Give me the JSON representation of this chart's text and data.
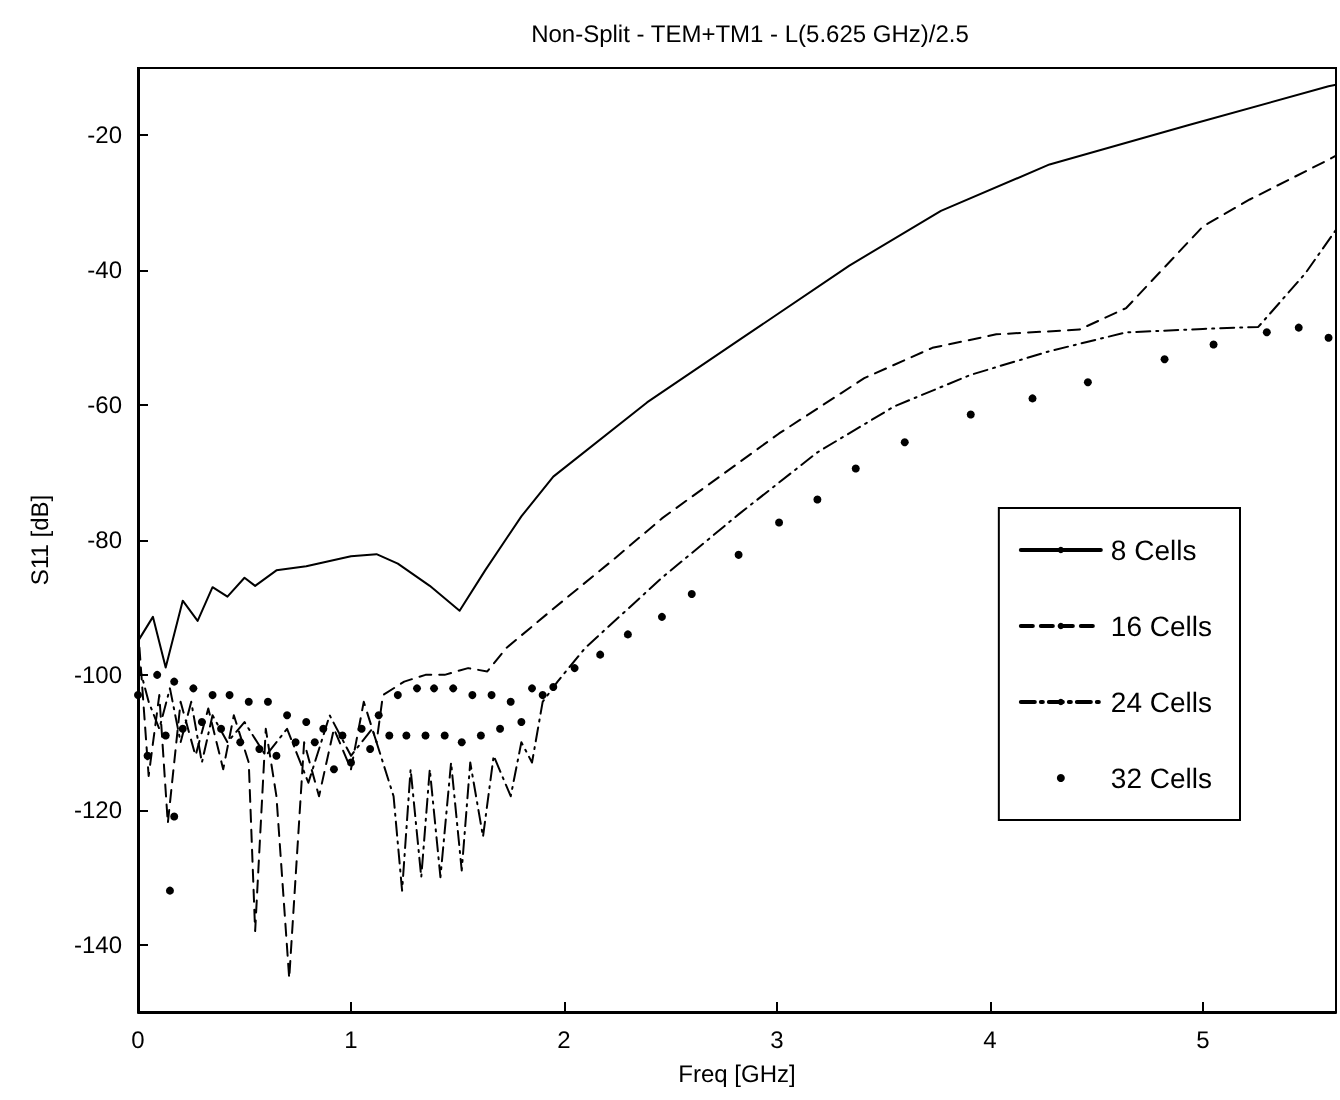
{
  "chart_data": {
    "type": "line",
    "title": "Non-Split - TEM+TM1 - L(5.625 GHz)/2.5",
    "xlabel": "Freq [GHz]",
    "ylabel": "S11 [dB]",
    "xlim": [
      0,
      5.625
    ],
    "xticks": [
      0,
      1,
      2,
      3,
      4,
      5
    ],
    "ylim": [
      -150,
      -10
    ],
    "yticks": [
      -140,
      -120,
      -100,
      -80,
      -60,
      -40,
      -20
    ],
    "grid": false,
    "legend": "bottom right",
    "series": [
      {
        "name": "8 Cells",
        "color": "#000000",
        "line_style": "solid",
        "x": [
          0,
          0.07,
          0.13,
          0.21,
          0.28,
          0.35,
          0.42,
          0.5,
          0.55,
          0.65,
          0.79,
          1.0,
          1.12,
          1.22,
          1.37,
          1.51,
          1.63,
          1.8,
          1.95,
          2.39,
          2.82,
          3.34,
          3.77,
          4.28,
          4.93,
          5.59,
          5.625
        ],
        "values": [
          -95,
          -91.4,
          -98.9,
          -89,
          -92,
          -87,
          -88.4,
          -85.6,
          -86.8,
          -84.5,
          -83.9,
          -82.4,
          -82.1,
          -83.5,
          -86.8,
          -90.5,
          -84.5,
          -76.5,
          -70.6,
          -59.6,
          -50.4,
          -39.3,
          -31.2,
          -24.3,
          -18.5,
          -12.7,
          -12.5
        ]
      },
      {
        "name": "16 Cells",
        "color": "#000000",
        "line_style": "dashed",
        "x": [
          0,
          0.05,
          0.1,
          0.14,
          0.2,
          0.27,
          0.33,
          0.4,
          0.45,
          0.52,
          0.55,
          0.6,
          0.65,
          0.71,
          0.78,
          0.85,
          0.92,
          1.0,
          1.06,
          1.12,
          1.15,
          1.25,
          1.35,
          1.44,
          1.55,
          1.64,
          1.73,
          1.95,
          2.24,
          2.46,
          3.01,
          3.41,
          3.73,
          4.03,
          4.42,
          4.64,
          5.0,
          5.22,
          5.59,
          5.625
        ],
        "values": [
          -93,
          -115,
          -103,
          -122,
          -104,
          -112,
          -105,
          -114,
          -106,
          -113,
          -138,
          -108,
          -118,
          -145,
          -110,
          -118,
          -108,
          -114,
          -104,
          -110,
          -103,
          -101,
          -100,
          -100,
          -99,
          -99.5,
          -96,
          -90.2,
          -82.7,
          -76.8,
          -64.2,
          -56,
          -51.5,
          -49.5,
          -48.8,
          -45.6,
          -33.5,
          -29.5,
          -23.6,
          -23
        ]
      },
      {
        "name": "24 Cells",
        "color": "#000000",
        "line_style": "dashdot",
        "x": [
          0,
          0.05,
          0.1,
          0.15,
          0.2,
          0.25,
          0.3,
          0.35,
          0.42,
          0.5,
          0.6,
          0.7,
          0.8,
          0.9,
          1.0,
          1.1,
          1.2,
          1.24,
          1.28,
          1.33,
          1.37,
          1.42,
          1.47,
          1.52,
          1.56,
          1.62,
          1.67,
          1.75,
          1.8,
          1.85,
          1.9,
          1.97,
          2.1,
          2.46,
          2.82,
          3.19,
          3.55,
          3.91,
          4.28,
          4.64,
          5.0,
          5.26,
          5.48,
          5.625
        ],
        "values": [
          -98,
          -104,
          -108,
          -102,
          -110,
          -104,
          -113,
          -106,
          -110,
          -107,
          -112,
          -108,
          -116,
          -106,
          -112,
          -108,
          -118,
          -132,
          -114,
          -130,
          -114,
          -130,
          -113,
          -129,
          -113,
          -124,
          -112,
          -118,
          -110,
          -113,
          -104,
          -101,
          -96,
          -85.6,
          -76.2,
          -67,
          -60.2,
          -55.5,
          -52,
          -49.2,
          -48.7,
          -48.4,
          -40.5,
          -34
        ]
      },
      {
        "name": "32 Cells",
        "color": "#000000",
        "type": "scatter",
        "marker": "circle",
        "x": [
          0,
          0.045,
          0.09,
          0.13,
          0.17,
          0.21,
          0.26,
          0.3,
          0.35,
          0.39,
          0.43,
          0.48,
          0.52,
          0.57,
          0.61,
          0.65,
          0.7,
          0.74,
          0.79,
          0.83,
          0.87,
          0.92,
          0.96,
          1.0,
          1.05,
          1.09,
          1.13,
          1.18,
          1.22,
          1.26,
          1.31,
          1.35,
          1.39,
          1.44,
          1.48,
          1.52,
          1.57,
          1.61,
          1.66,
          1.7,
          1.75,
          1.8,
          1.85,
          1.9,
          1.95,
          2.05,
          2.17,
          2.3,
          2.46,
          2.6,
          2.82,
          3.01,
          3.19,
          3.37,
          3.6,
          3.91,
          4.2,
          4.46,
          4.82,
          5.05,
          5.3,
          5.45,
          5.59,
          0.17,
          0.15
        ],
        "values": [
          -103,
          -112,
          -100,
          -109,
          -101,
          -108,
          -102,
          -107,
          -103,
          -108,
          -103,
          -110,
          -104,
          -111,
          -104,
          -112,
          -106,
          -110,
          -107,
          -110,
          -108,
          -114,
          -109,
          -113,
          -108,
          -111,
          -106,
          -109,
          -103,
          -109,
          -102,
          -109,
          -102,
          -109,
          -102,
          -110,
          -103,
          -109,
          -103,
          -108,
          -104,
          -107,
          -102,
          -103,
          -101.8,
          -99,
          -97,
          -94,
          -91.4,
          -88,
          -82.2,
          -77.4,
          -74,
          -69.4,
          -65.5,
          -61.4,
          -59,
          -56.6,
          -53.2,
          -51,
          -49.2,
          -48.5,
          -50,
          -121,
          -132
        ]
      }
    ]
  }
}
